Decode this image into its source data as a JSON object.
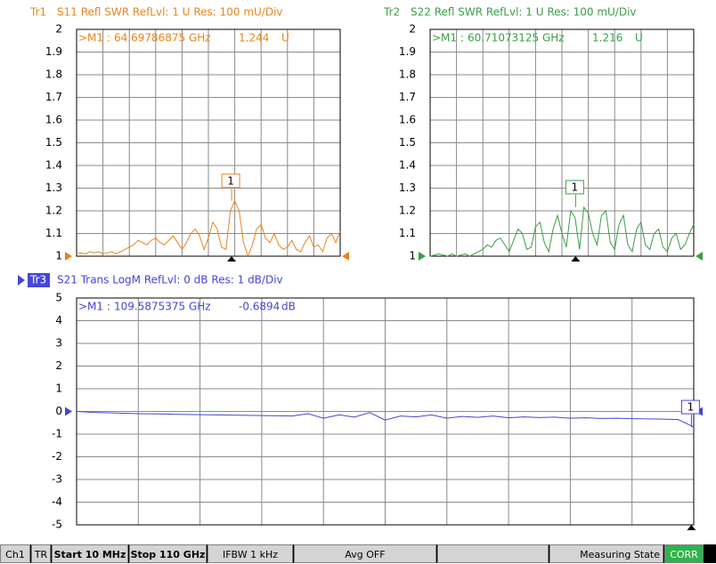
{
  "chart_data": [
    {
      "type": "line",
      "trace": "Tr1",
      "title": "S11 Refl SWR RefLvl: 1  U Res: 100 mU/Div",
      "color": "#e8841c",
      "ylim": [
        1,
        2
      ],
      "yticks": [
        1,
        1.1,
        1.2,
        1.3,
        1.4,
        1.5,
        1.6,
        1.7,
        1.8,
        1.9,
        2
      ],
      "xlim": [
        0.01,
        110
      ],
      "grid": true,
      "values": [
        1.01,
        1.015,
        1.01,
        1.02,
        1.015,
        1.02,
        1.01,
        1.015,
        1.02,
        1.01,
        1.02,
        1.03,
        1.04,
        1.05,
        1.07,
        1.06,
        1.05,
        1.07,
        1.08,
        1.06,
        1.05,
        1.07,
        1.09,
        1.06,
        1.03,
        1.06,
        1.1,
        1.12,
        1.09,
        1.03,
        1.08,
        1.15,
        1.12,
        1.04,
        1.03,
        1.2,
        1.244,
        1.2,
        1.06,
        1.0,
        1.05,
        1.12,
        1.14,
        1.08,
        1.06,
        1.1,
        1.05,
        1.03,
        1.04,
        1.07,
        1.03,
        1.02,
        1.06,
        1.09,
        1.04,
        1.05,
        1.02,
        1.08,
        1.1,
        1.06,
        1.11
      ],
      "marker": {
        "id": "1",
        "label": ">M1 :",
        "x": 64.69786875,
        "x_label": "64.69786875 GHz",
        "value": 1.244,
        "unit": "U"
      }
    },
    {
      "type": "line",
      "trace": "Tr2",
      "title": "S22 Refl SWR RefLvl: 1  U Res: 100 mU/Div",
      "color": "#3a9e48",
      "ylim": [
        1,
        2
      ],
      "yticks": [
        1,
        1.1,
        1.2,
        1.3,
        1.4,
        1.5,
        1.6,
        1.7,
        1.8,
        1.9,
        2
      ],
      "xlim": [
        0.01,
        110
      ],
      "grid": true,
      "values": [
        1.0,
        1.005,
        1.01,
        1.005,
        1.0,
        1.01,
        1.0,
        1.005,
        1.01,
        1.0,
        1.01,
        1.02,
        1.03,
        1.05,
        1.04,
        1.07,
        1.08,
        1.05,
        1.02,
        1.07,
        1.12,
        1.1,
        1.03,
        1.04,
        1.13,
        1.15,
        1.06,
        1.02,
        1.12,
        1.18,
        1.1,
        1.04,
        1.2,
        1.17,
        1.03,
        1.216,
        1.19,
        1.1,
        1.05,
        1.18,
        1.2,
        1.06,
        1.03,
        1.14,
        1.18,
        1.05,
        1.02,
        1.12,
        1.15,
        1.05,
        1.03,
        1.1,
        1.12,
        1.04,
        1.02,
        1.08,
        1.1,
        1.03,
        1.05,
        1.1,
        1.14
      ],
      "marker": {
        "id": "1",
        "label": ">M1 :",
        "x": 60.71073125,
        "x_label": "60.71073125 GHz",
        "value": 1.216,
        "unit": "U"
      }
    },
    {
      "type": "line",
      "trace": "Tr3",
      "title": "S21 Trans LogM RefLvl: 0  dB Res: 1  dB/Div",
      "color": "#4646d6",
      "ylim": [
        -5,
        5
      ],
      "yticks": [
        -5,
        -4,
        -3,
        -2,
        -1,
        0,
        1,
        2,
        3,
        4,
        5
      ],
      "xlim": [
        0.01,
        110
      ],
      "grid": true,
      "values": [
        0.0,
        -0.04,
        -0.06,
        -0.08,
        -0.1,
        -0.11,
        -0.12,
        -0.13,
        -0.14,
        -0.15,
        -0.16,
        -0.17,
        -0.18,
        -0.19,
        -0.2,
        -0.1,
        -0.3,
        -0.15,
        -0.25,
        -0.05,
        -0.38,
        -0.2,
        -0.24,
        -0.15,
        -0.3,
        -0.22,
        -0.26,
        -0.2,
        -0.28,
        -0.24,
        -0.27,
        -0.25,
        -0.3,
        -0.28,
        -0.31,
        -0.3,
        -0.32,
        -0.33,
        -0.34,
        -0.36,
        -0.6894
      ],
      "marker": {
        "id": "1",
        "label": ">M1 :",
        "x": 109.5875375,
        "x_label": "109.5875375 GHz",
        "value": -0.6894,
        "unit": "dB"
      }
    }
  ],
  "status_bar": [
    "Ch1",
    "TR",
    "Start 10 MHz",
    "Stop 110 GHz",
    "IFBW 1 kHz",
    "Avg OFF",
    "Measuring State",
    "CORR"
  ]
}
